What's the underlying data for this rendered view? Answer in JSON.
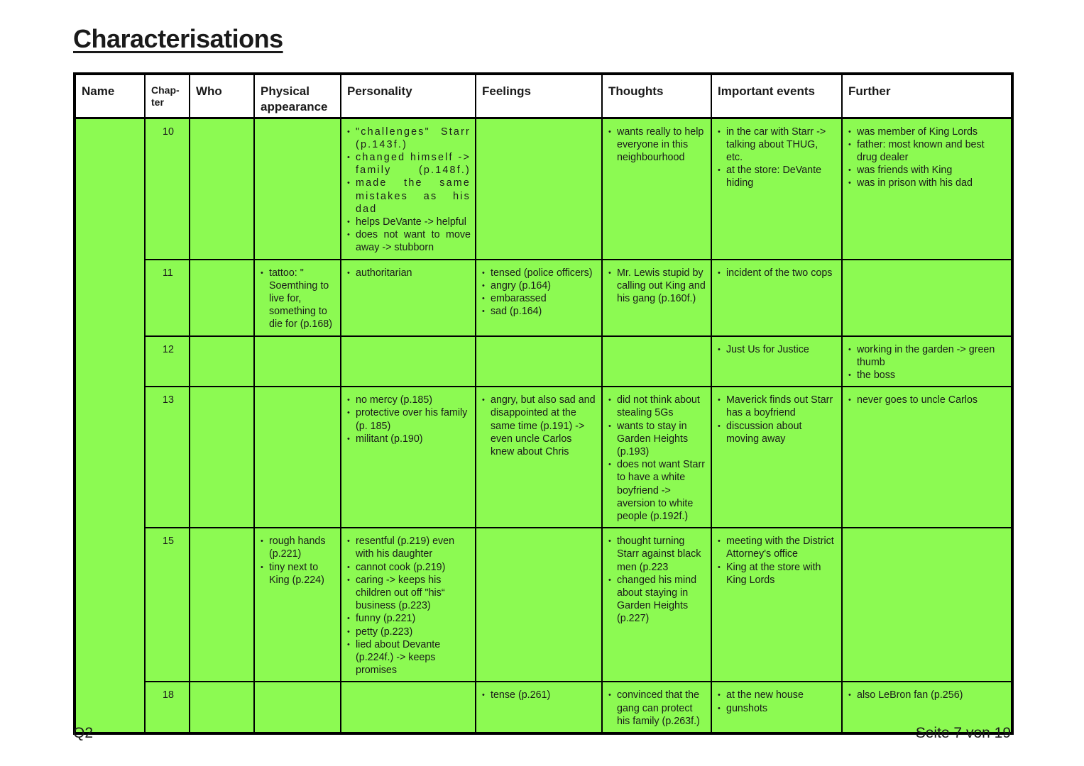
{
  "title": "Characterisations",
  "headers": {
    "name": "Name",
    "chapter_line1": "Chap-",
    "chapter_line2": "ter",
    "who": "Who",
    "physical": "Physical appearance",
    "personality": "Personality",
    "feelings": "Feelings",
    "thoughts": "Thoughts",
    "events": "Important events",
    "further": "Further"
  },
  "rows": [
    {
      "chapter": "10",
      "personality": [
        "\"challenges\" Starr (p.143f.)",
        "changed himself -> family (p.148f.)",
        "made the same mistakes as his dad",
        "helps DeVante -> helpful",
        "does not want to move away -> stubborn"
      ],
      "thoughts": [
        "wants really to help everyone in this neighbourhood"
      ],
      "events": [
        "in the car with Starr -> talking about THUG, etc.",
        "at the store: DeVante hiding"
      ],
      "further": [
        "was member of King Lords",
        "father: most known and best drug dealer",
        "was friends with King",
        "was in prison with his dad"
      ]
    },
    {
      "chapter": "11",
      "physical": [
        "tattoo: \" Soemthing to live for, something to die for (p.168)"
      ],
      "personality": [
        "authoritarian"
      ],
      "feelings": [
        "tensed (police officers)",
        "angry (p.164)",
        "embarassed",
        "sad (p.164)"
      ],
      "thoughts": [
        "Mr. Lewis stupid by calling out King and his gang (p.160f.)"
      ],
      "events": [
        "incident of the two cops"
      ]
    },
    {
      "chapter": "12",
      "events": [
        "Just Us for Justice"
      ],
      "further": [
        "working in the garden -> green thumb",
        "the boss"
      ]
    },
    {
      "chapter": "13",
      "personality": [
        "no mercy (p.185)",
        "protective over his family (p. 185)",
        "militant (p.190)"
      ],
      "feelings": [
        "angry, but also sad and disappointed at the same time (p.191) -> even uncle Carlos knew about Chris"
      ],
      "thoughts": [
        "did not think about stealing 5Gs",
        "wants to stay in Garden Heights (p.193)",
        "does not want Starr to have a white boyfriend -> aversion to white people (p.192f.)"
      ],
      "events": [
        "Maverick finds out Starr has a boyfriend",
        "discussion about moving away"
      ],
      "further": [
        "never goes to uncle Carlos"
      ]
    },
    {
      "chapter": "15",
      "physical": [
        "rough hands (p.221)",
        "tiny next to King (p.224)"
      ],
      "personality": [
        "resentful (p.219) even with his daughter",
        "cannot cook (p.219)",
        "caring -> keeps his children out off \"his“ business (p.223)",
        "funny (p.221)",
        "petty (p.223)",
        "lied about Devante (p.224f.) -> keeps promises"
      ],
      "thoughts": [
        "thought turning Starr against black men (p.223",
        "changed his mind about staying in Garden Heights (p.227)"
      ],
      "events": [
        "meeting with the District Attorney's office",
        "King at the store with King Lords"
      ]
    },
    {
      "chapter": "18",
      "feelings": [
        "tense (p.261)"
      ],
      "thoughts": [
        "convinced that the gang can protect his family (p.263f.)"
      ],
      "events": [
        "at the new house",
        "gunshots"
      ],
      "further": [
        "also LeBron fan (p.256)"
      ]
    }
  ],
  "colors": {
    "cell_green": "#8cfa52",
    "border": "#000000"
  },
  "footer": {
    "left": "Q2",
    "right": "Seite 7 von 19"
  }
}
